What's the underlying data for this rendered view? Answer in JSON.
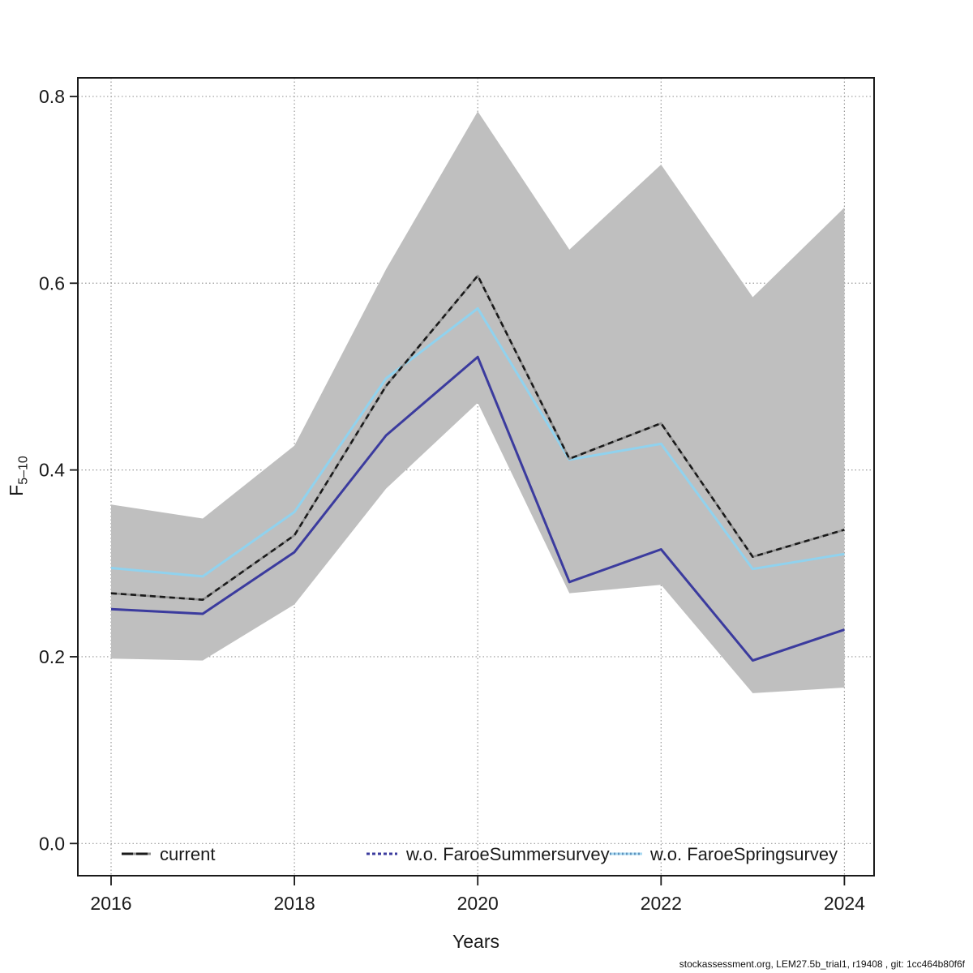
{
  "page": {
    "background": "#ffffff"
  },
  "chart_data": {
    "type": "line",
    "title": "",
    "xlabel": "Years",
    "ylabel": "F",
    "ylabel_subscript": "5–10",
    "grid": "dotted",
    "legend_position": "bottom-inside",
    "x": [
      2016,
      2017,
      2018,
      2019,
      2020,
      2021,
      2022,
      2023,
      2024
    ],
    "x_ticks": [
      2016,
      2018,
      2020,
      2022,
      2024
    ],
    "y_ticks": [
      0.0,
      0.2,
      0.4,
      0.6,
      0.8
    ],
    "xlim": [
      2015.64,
      2024.33
    ],
    "ylim": [
      -0.034,
      0.82
    ],
    "series": [
      {
        "name": "current",
        "color": "#1a1a1a",
        "underlay_color": "#8f8f8f",
        "line_style": "dashed",
        "values": [
          0.268,
          0.261,
          0.33,
          0.49,
          0.608,
          0.412,
          0.45,
          0.307,
          0.336
        ]
      },
      {
        "name": "w.o. FaroeSummersurvey",
        "color": "#3b3b9e",
        "line_style": "solid",
        "legend_style": "dashed",
        "values": [
          0.251,
          0.246,
          0.312,
          0.437,
          0.521,
          0.28,
          0.315,
          0.196,
          0.229
        ]
      },
      {
        "name": "w.o. FaroeSpringsurvey",
        "color": "#90d2ee",
        "line_style": "solid",
        "legend_style": "dotted",
        "values": [
          0.295,
          0.286,
          0.355,
          0.498,
          0.573,
          0.411,
          0.428,
          0.294,
          0.31
        ]
      }
    ],
    "confidence_band": {
      "belongs_to": "current",
      "color": "#bfbfbf",
      "upper": [
        0.363,
        0.348,
        0.426,
        0.615,
        0.784,
        0.636,
        0.727,
        0.585,
        0.681
      ],
      "lower": [
        0.198,
        0.196,
        0.256,
        0.38,
        0.472,
        0.268,
        0.277,
        0.161,
        0.167
      ]
    },
    "footer": "stockassessment.org, LEM27.5b_trial1, r19408 , git: 1cc464b80f6f"
  }
}
